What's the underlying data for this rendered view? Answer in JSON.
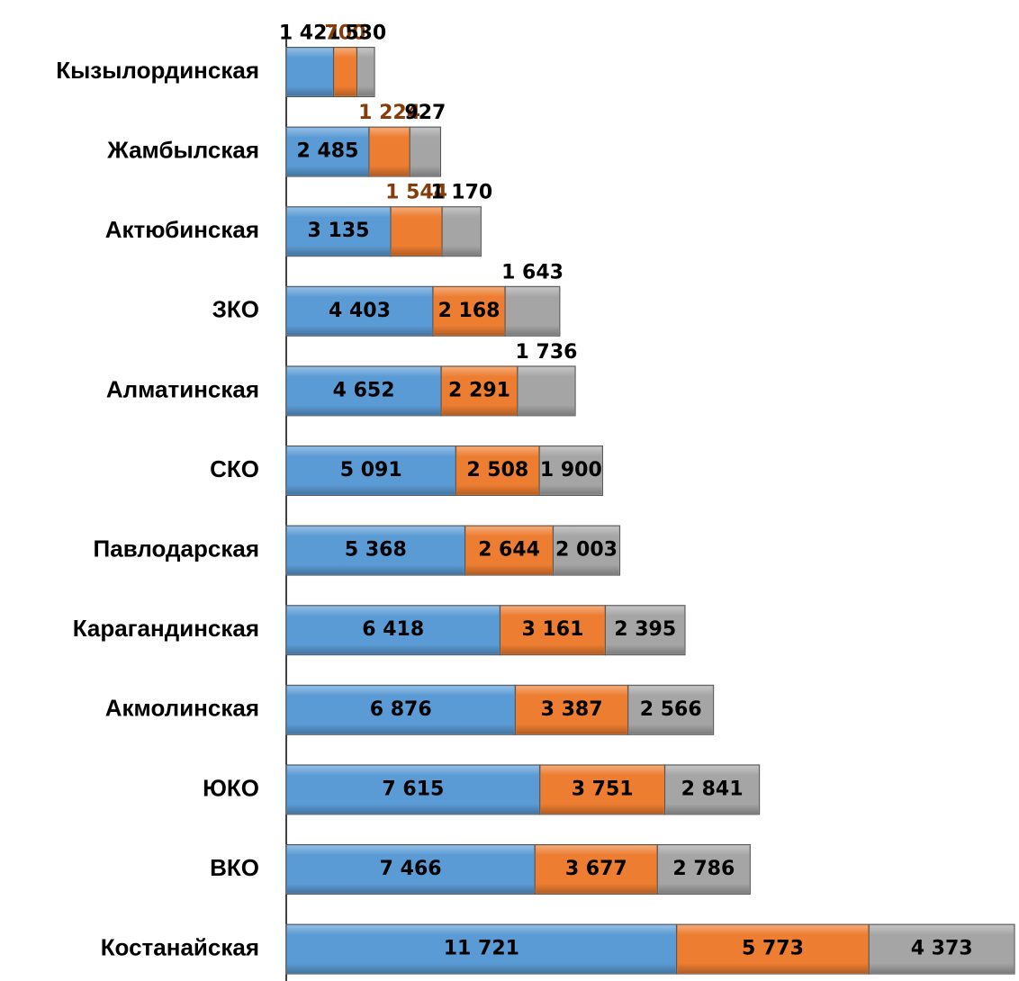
{
  "chart_data": {
    "type": "stacked-bar-horizontal",
    "categories": [
      "Кызылординская",
      "Жамбылская",
      "Актюбинская",
      "ЗКО",
      "Алматинская",
      "СКО",
      "Павлодарская",
      "Карагандинская",
      "Акмолинская",
      "ЮКО",
      "ВКО",
      "Костанайская"
    ],
    "series": [
      {
        "color": "#5b9bd5",
        "values": [
          1421,
          2485,
          3135,
          4403,
          4652,
          5091,
          5368,
          6418,
          6876,
          7615,
          7466,
          11721
        ],
        "value_labels": [
          "1 421",
          "2 485",
          "3 135",
          "4 403",
          "4 652",
          "5 091",
          "5 368",
          "6 418",
          "6 876",
          "7 615",
          "7 466",
          "11 721"
        ]
      },
      {
        "color": "#ed7d31",
        "values": [
          700,
          1224,
          1544,
          2168,
          2291,
          2508,
          2644,
          3161,
          3387,
          3751,
          3677,
          5773
        ],
        "value_labels": [
          "700",
          "1 224",
          "1 544",
          "2 168",
          "2 291",
          "2 508",
          "2 644",
          "3 161",
          "3 387",
          "3 751",
          "3 677",
          "5 773"
        ]
      },
      {
        "color": "#a5a5a5",
        "values": [
          530,
          927,
          1170,
          1643,
          1736,
          1900,
          2003,
          2395,
          2566,
          2841,
          2786,
          4373
        ],
        "value_labels": [
          "530",
          "927",
          "1 170",
          "1 643",
          "1 736",
          "1 900",
          "2 003",
          "2 395",
          "2 566",
          "2 841",
          "2 786",
          "4 373"
        ]
      }
    ],
    "xlim": [
      0,
      22000
    ]
  }
}
